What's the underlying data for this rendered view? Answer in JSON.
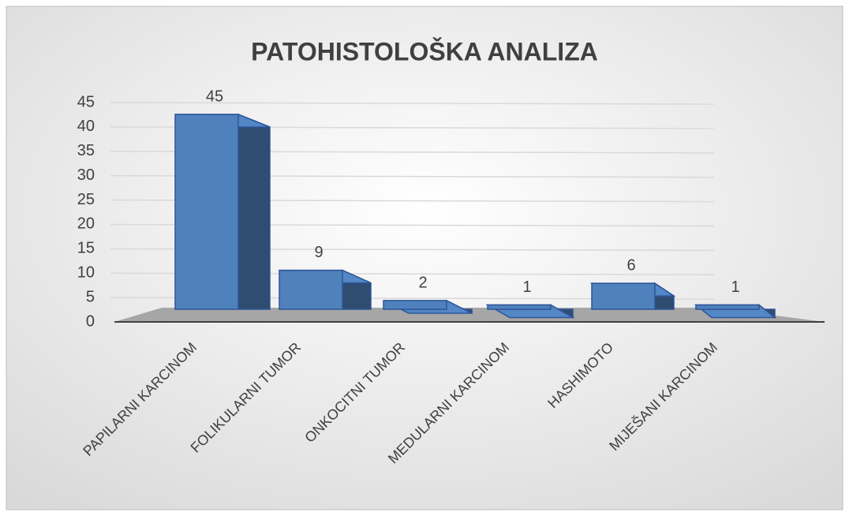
{
  "chart_data": {
    "type": "bar3d",
    "title": "PATOHISTOLOŠKA ANALIZA",
    "categories": [
      "PAPILARNI KARCINOM",
      "FOLIKULARNI TUMOR",
      "ONKOCITNI TUMOR",
      "MEDULARNI KARCINOM",
      "HASHIMOTO",
      "MIJEŠANI KARCINOM"
    ],
    "values": [
      45,
      9,
      2,
      1,
      6,
      1
    ],
    "color": "#4f81bd",
    "ylim": [
      0,
      45
    ],
    "yticks": [
      0,
      5,
      10,
      15,
      20,
      25,
      30,
      35,
      40,
      45
    ],
    "grid": true
  }
}
